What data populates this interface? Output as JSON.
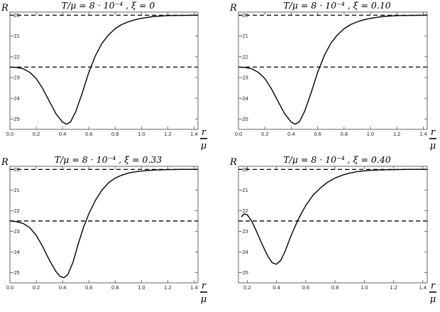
{
  "chart_data": [
    {
      "type": "line",
      "title": "T/μ = 8 · 10⁻⁴ ,   ξ = 0",
      "ylabel": "R",
      "xlabel_num": "r",
      "xlabel_den": "μ",
      "xlim": [
        0.0,
        1.43
      ],
      "ylim": [
        -25.5,
        -19.85
      ],
      "xticks": [
        "0.0",
        "0.2",
        "0.4",
        "0.6",
        "0.8",
        "1.0",
        "1.2",
        "1.4"
      ],
      "yticks": [
        "-20",
        "-21",
        "-22",
        "-23",
        "-24",
        "-25"
      ],
      "reference_lines": [
        -20,
        -22.5
      ],
      "series": [
        {
          "x": [
            0.0,
            0.05,
            0.1,
            0.15,
            0.2,
            0.25,
            0.3,
            0.35,
            0.4,
            0.43,
            0.46,
            0.5,
            0.55,
            0.6,
            0.65,
            0.7,
            0.75,
            0.8,
            0.85,
            0.9,
            0.95,
            1.0,
            1.05,
            1.1,
            1.15,
            1.2,
            1.3,
            1.43
          ],
          "y": [
            -22.5,
            -22.52,
            -22.58,
            -22.75,
            -23.05,
            -23.55,
            -24.15,
            -24.75,
            -25.15,
            -25.25,
            -25.15,
            -24.65,
            -23.75,
            -22.75,
            -21.95,
            -21.35,
            -20.95,
            -20.65,
            -20.45,
            -20.32,
            -20.22,
            -20.15,
            -20.1,
            -20.06,
            -20.04,
            -20.02,
            -20.01,
            -20.0
          ]
        }
      ]
    },
    {
      "type": "line",
      "title": "T/μ = 8 · 10⁻⁴ ,   ξ = 0.10",
      "ylabel": "R",
      "xlabel_num": "r",
      "xlabel_den": "μ",
      "xlim": [
        0.0,
        1.43
      ],
      "ylim": [
        -25.5,
        -19.85
      ],
      "xticks": [
        "0.0",
        "0.2",
        "0.4",
        "0.6",
        "0.8",
        "1.0",
        "1.2",
        "1.4"
      ],
      "yticks": [
        "-20",
        "-21",
        "-22",
        "-23",
        "-24",
        "-25"
      ],
      "reference_lines": [
        -20,
        -22.5
      ],
      "series": [
        {
          "x": [
            0.0,
            0.05,
            0.1,
            0.15,
            0.2,
            0.25,
            0.3,
            0.35,
            0.4,
            0.43,
            0.46,
            0.5,
            0.55,
            0.6,
            0.65,
            0.7,
            0.75,
            0.8,
            0.85,
            0.9,
            0.95,
            1.0,
            1.05,
            1.1,
            1.15,
            1.2,
            1.3,
            1.43
          ],
          "y": [
            -22.5,
            -22.52,
            -22.58,
            -22.75,
            -23.05,
            -23.55,
            -24.15,
            -24.75,
            -25.15,
            -25.25,
            -25.15,
            -24.65,
            -23.75,
            -22.75,
            -21.95,
            -21.35,
            -20.95,
            -20.65,
            -20.45,
            -20.32,
            -20.22,
            -20.15,
            -20.1,
            -20.06,
            -20.04,
            -20.02,
            -20.01,
            -20.0
          ]
        }
      ]
    },
    {
      "type": "line",
      "title": "T/μ = 8 · 10⁻⁴ ,   ξ = 0.33",
      "ylabel": "R",
      "xlabel_num": "r",
      "xlabel_den": "μ",
      "xlim": [
        0.0,
        1.43
      ],
      "ylim": [
        -25.5,
        -19.85
      ],
      "xticks": [
        "0.0",
        "0.2",
        "0.4",
        "0.6",
        "0.8",
        "1.0",
        "1.2",
        "1.4"
      ],
      "yticks": [
        "-20",
        "-21",
        "-22",
        "-23",
        "-24",
        "-25"
      ],
      "reference_lines": [
        -20,
        -22.5
      ],
      "series": [
        {
          "x": [
            0.0,
            0.05,
            0.1,
            0.15,
            0.2,
            0.25,
            0.3,
            0.35,
            0.38,
            0.41,
            0.44,
            0.48,
            0.52,
            0.56,
            0.6,
            0.65,
            0.7,
            0.75,
            0.8,
            0.85,
            0.9,
            0.95,
            1.0,
            1.05,
            1.1,
            1.2,
            1.3,
            1.43
          ],
          "y": [
            -22.5,
            -22.53,
            -22.62,
            -22.82,
            -23.2,
            -23.75,
            -24.4,
            -24.95,
            -25.18,
            -25.25,
            -25.1,
            -24.5,
            -23.6,
            -22.8,
            -22.15,
            -21.5,
            -21.0,
            -20.65,
            -20.42,
            -20.28,
            -20.18,
            -20.12,
            -20.08,
            -20.05,
            -20.03,
            -20.01,
            -20.0,
            -20.0
          ]
        }
      ]
    },
    {
      "type": "line",
      "title": "T/μ = 8 · 10⁻⁴ ,   ξ = 0.40",
      "ylabel": "R",
      "xlabel_num": "r",
      "xlabel_den": "μ",
      "xlim": [
        0.14,
        1.43
      ],
      "ylim": [
        -25.5,
        -19.85
      ],
      "xticks": [
        "0.2",
        "0.4",
        "0.6",
        "0.8",
        "1.0",
        "1.2",
        "1.4"
      ],
      "yticks": [
        "-20",
        "-21",
        "-22",
        "-23",
        "-24",
        "-25"
      ],
      "reference_lines": [
        -20,
        -22.5
      ],
      "series": [
        {
          "x": [
            0.16,
            0.18,
            0.2,
            0.23,
            0.26,
            0.3,
            0.34,
            0.37,
            0.4,
            0.43,
            0.46,
            0.5,
            0.55,
            0.6,
            0.65,
            0.7,
            0.75,
            0.8,
            0.85,
            0.9,
            0.95,
            1.0,
            1.05,
            1.1,
            1.2,
            1.3,
            1.43
          ],
          "y": [
            -22.3,
            -22.15,
            -22.2,
            -22.5,
            -22.95,
            -23.6,
            -24.2,
            -24.52,
            -24.6,
            -24.4,
            -23.95,
            -23.2,
            -22.4,
            -21.75,
            -21.25,
            -20.9,
            -20.62,
            -20.42,
            -20.28,
            -20.18,
            -20.11,
            -20.07,
            -20.04,
            -20.03,
            -20.01,
            -20.0,
            -20.0
          ]
        }
      ]
    }
  ]
}
